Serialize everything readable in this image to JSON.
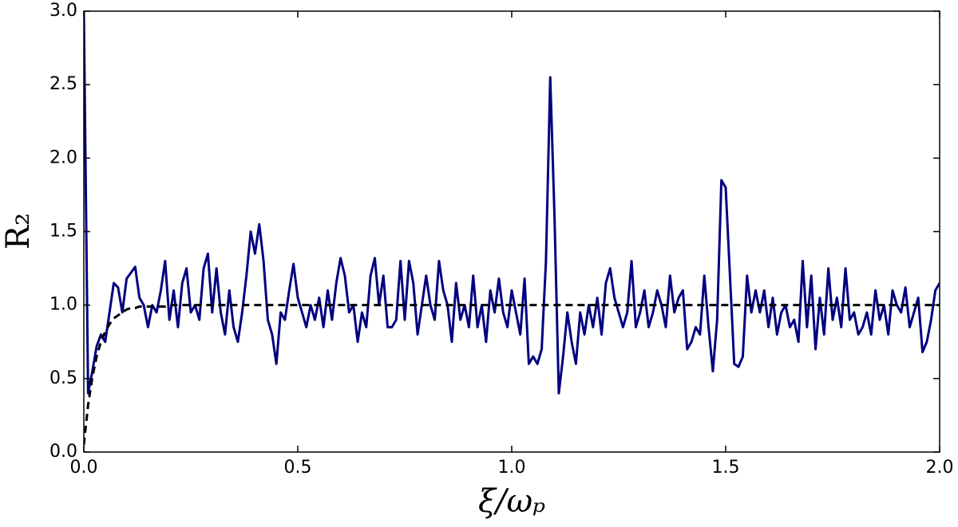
{
  "chart_data": {
    "type": "line",
    "x_label": "ξ/ωₚ",
    "y_label": "R₂",
    "x": [
      0,
      0.01,
      0.02,
      0.03,
      0.04,
      0.05,
      0.06,
      0.07,
      0.08,
      0.09,
      0.1,
      0.11,
      0.12,
      0.13,
      0.14,
      0.15,
      0.16,
      0.17,
      0.18,
      0.19,
      0.2,
      0.21,
      0.22,
      0.23,
      0.24,
      0.25,
      0.26,
      0.27,
      0.28,
      0.29,
      0.3,
      0.31,
      0.32,
      0.33,
      0.34,
      0.35,
      0.36,
      0.37,
      0.38,
      0.39,
      0.4,
      0.41,
      0.42,
      0.43,
      0.44,
      0.45,
      0.46,
      0.47,
      0.48,
      0.49,
      0.5,
      0.51,
      0.52,
      0.53,
      0.54,
      0.55,
      0.56,
      0.57,
      0.58,
      0.59,
      0.6,
      0.61,
      0.62,
      0.63,
      0.64,
      0.65,
      0.66,
      0.67,
      0.68,
      0.69,
      0.7,
      0.71,
      0.72,
      0.73,
      0.74,
      0.75,
      0.76,
      0.77,
      0.78,
      0.79,
      0.8,
      0.81,
      0.82,
      0.83,
      0.84,
      0.85,
      0.86,
      0.87,
      0.88,
      0.89,
      0.9,
      0.91,
      0.92,
      0.93,
      0.94,
      0.95,
      0.96,
      0.97,
      0.98,
      0.99,
      1,
      1.01,
      1.02,
      1.03,
      1.04,
      1.05,
      1.06,
      1.07,
      1.08,
      1.09,
      1.1,
      1.11,
      1.12,
      1.13,
      1.14,
      1.15,
      1.16,
      1.17,
      1.18,
      1.19,
      1.2,
      1.21,
      1.22,
      1.23,
      1.24,
      1.25,
      1.26,
      1.27,
      1.28,
      1.29,
      1.3,
      1.31,
      1.32,
      1.33,
      1.34,
      1.35,
      1.36,
      1.37,
      1.38,
      1.39,
      1.4,
      1.41,
      1.42,
      1.43,
      1.44,
      1.45,
      1.46,
      1.47,
      1.48,
      1.49,
      1.5,
      1.51,
      1.52,
      1.53,
      1.54,
      1.55,
      1.56,
      1.57,
      1.58,
      1.59,
      1.6,
      1.61,
      1.62,
      1.63,
      1.64,
      1.65,
      1.66,
      1.67,
      1.68,
      1.69,
      1.7,
      1.71,
      1.72,
      1.73,
      1.74,
      1.75,
      1.76,
      1.77,
      1.78,
      1.79,
      1.8,
      1.81,
      1.82,
      1.83,
      1.84,
      1.85,
      1.86,
      1.87,
      1.88,
      1.89,
      1.9,
      1.91,
      1.92,
      1.93,
      1.94,
      1.95,
      1.96,
      1.97,
      1.98,
      1.99,
      2
    ],
    "series": [
      {
        "color": "#000080",
        "linestyle": "solid",
        "values": [
          3.0,
          0.4,
          0.55,
          0.72,
          0.8,
          0.75,
          0.95,
          1.15,
          1.12,
          0.95,
          1.18,
          1.22,
          1.26,
          1.05,
          1.0,
          0.85,
          1.0,
          0.95,
          1.1,
          1.3,
          0.9,
          1.1,
          0.85,
          1.15,
          1.25,
          0.95,
          1.0,
          0.9,
          1.25,
          1.35,
          0.95,
          1.25,
          0.95,
          0.8,
          1.1,
          0.85,
          0.75,
          0.95,
          1.2,
          1.5,
          1.35,
          1.55,
          1.3,
          0.9,
          0.8,
          0.6,
          0.95,
          0.9,
          1.1,
          1.28,
          1.05,
          0.95,
          0.85,
          1.0,
          0.9,
          1.05,
          0.85,
          1.1,
          0.9,
          1.15,
          1.32,
          1.2,
          0.95,
          1.0,
          0.75,
          0.95,
          0.85,
          1.2,
          1.32,
          1.0,
          1.2,
          0.85,
          0.85,
          0.9,
          1.3,
          0.9,
          1.3,
          1.15,
          0.8,
          1.0,
          1.2,
          1.0,
          0.9,
          1.3,
          1.1,
          1.0,
          0.75,
          1.15,
          0.9,
          1.0,
          0.85,
          1.2,
          0.85,
          1.0,
          0.75,
          1.1,
          0.95,
          1.18,
          0.95,
          0.85,
          1.1,
          0.95,
          0.8,
          1.18,
          0.6,
          0.65,
          0.6,
          0.7,
          1.3,
          2.55,
          1.6,
          0.4,
          0.65,
          0.95,
          0.75,
          0.6,
          0.95,
          0.8,
          1.0,
          0.85,
          1.05,
          0.8,
          1.15,
          1.25,
          1.05,
          0.95,
          0.85,
          0.95,
          1.3,
          0.85,
          0.95,
          1.1,
          0.85,
          0.95,
          1.1,
          1.0,
          0.85,
          1.2,
          0.95,
          1.05,
          1.1,
          0.7,
          0.75,
          0.85,
          0.8,
          1.2,
          0.85,
          0.55,
          0.9,
          1.85,
          1.8,
          1.2,
          0.6,
          0.58,
          0.65,
          1.2,
          0.95,
          1.1,
          0.95,
          1.1,
          0.85,
          1.05,
          0.8,
          0.95,
          1.0,
          0.85,
          0.9,
          0.75,
          1.3,
          0.85,
          1.2,
          0.7,
          1.05,
          0.8,
          1.25,
          0.9,
          1.05,
          0.85,
          1.25,
          0.9,
          0.95,
          0.8,
          0.85,
          0.95,
          0.8,
          1.1,
          0.9,
          1.0,
          0.8,
          1.1,
          1.0,
          0.95,
          1.12,
          0.85,
          0.95,
          1.05,
          0.68,
          0.75,
          0.9,
          1.1,
          1.15
        ]
      },
      {
        "color": "#000000",
        "linestyle": "dashed",
        "values": [
          0.05,
          0.32,
          0.51,
          0.65,
          0.75,
          0.82,
          0.87,
          0.91,
          0.93,
          0.95,
          0.97,
          0.98,
          0.98,
          0.99,
          0.99,
          0.99,
          0.99,
          0.99,
          0.99,
          0.99,
          1,
          1,
          1,
          1,
          1,
          1,
          1,
          1,
          1,
          1,
          1,
          1,
          1,
          1,
          1,
          1,
          1,
          1,
          1,
          1,
          1,
          1,
          1,
          1,
          1,
          1,
          1,
          1,
          1,
          1,
          1,
          1,
          1,
          1,
          1,
          1,
          1,
          1,
          1,
          1,
          1,
          1,
          1,
          1,
          1,
          1,
          1,
          1,
          1,
          1,
          1,
          1,
          1,
          1,
          1,
          1,
          1,
          1,
          1,
          1,
          1,
          1,
          1,
          1,
          1,
          1,
          1,
          1,
          1,
          1,
          1,
          1,
          1,
          1,
          1,
          1,
          1,
          1,
          1,
          1,
          1,
          1,
          1,
          1,
          1,
          1,
          1,
          1,
          1,
          1,
          1,
          1,
          1,
          1,
          1,
          1,
          1,
          1,
          1,
          1,
          1,
          1,
          1,
          1,
          1,
          1,
          1,
          1,
          1,
          1,
          1,
          1,
          1,
          1,
          1,
          1,
          1,
          1,
          1,
          1,
          1,
          1,
          1,
          1,
          1,
          1,
          1,
          1,
          1,
          1,
          1,
          1,
          1,
          1,
          1,
          1,
          1,
          1,
          1,
          1,
          1,
          1,
          1,
          1,
          1,
          1,
          1,
          1,
          1,
          1,
          1,
          1,
          1,
          1,
          1,
          1,
          1,
          1,
          1,
          1,
          1,
          1,
          1,
          1,
          1,
          1,
          1,
          1,
          1,
          1,
          1,
          1,
          1,
          1,
          1,
          1,
          1,
          1,
          1,
          1,
          1
        ]
      }
    ],
    "xlim": [
      0,
      2
    ],
    "ylim": [
      0,
      3
    ],
    "xticks": [
      {
        "value": 0,
        "label": "0.0"
      },
      0.5,
      {
        "value": 1,
        "label": "1.0"
      },
      1.5,
      {
        "value": 2,
        "label": "2.0"
      }
    ],
    "yticks": [
      {
        "value": 0,
        "label": "0.0"
      },
      0.5,
      {
        "value": 1,
        "label": "1.0"
      },
      1.5,
      {
        "value": 2,
        "label": "2.0"
      },
      2.5,
      {
        "value": 3,
        "label": "3.0"
      }
    ]
  }
}
